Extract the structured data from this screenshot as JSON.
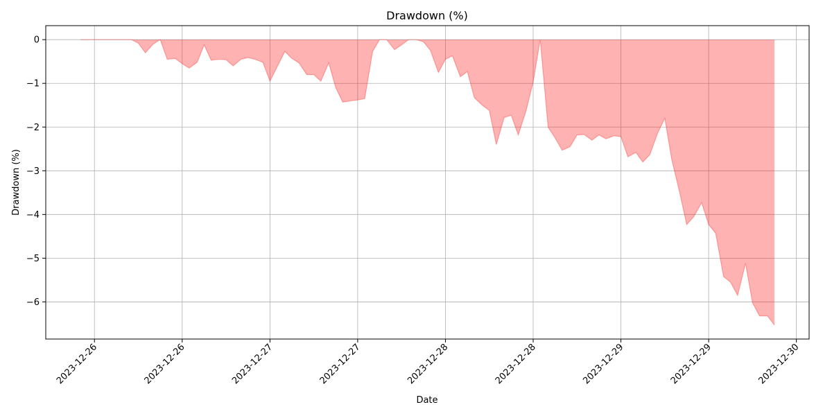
{
  "chart_data": {
    "type": "area",
    "title": "Drawdown (%)",
    "xlabel": "Date",
    "ylabel": "Drawdown (%)",
    "ylim": [
      -6.85,
      0.32
    ],
    "xlim": [
      -0.555,
      8.145
    ],
    "grid": true,
    "fill_color": "#ff0000",
    "fill_opacity": 0.3,
    "x_ticks": [
      {
        "pos": 0,
        "label": "2023-12-26"
      },
      {
        "pos": 1,
        "label": "2023-12-26"
      },
      {
        "pos": 2,
        "label": "2023-12-27"
      },
      {
        "pos": 3,
        "label": "2023-12-27"
      },
      {
        "pos": 4,
        "label": "2023-12-28"
      },
      {
        "pos": 5,
        "label": "2023-12-28"
      },
      {
        "pos": 6,
        "label": "2023-12-29"
      },
      {
        "pos": 7,
        "label": "2023-12-29"
      },
      {
        "pos": 8,
        "label": "2023-12-30"
      }
    ],
    "y_ticks": [
      {
        "value": 0,
        "label": "0"
      },
      {
        "value": -1,
        "label": "−1"
      },
      {
        "value": -2,
        "label": "−2"
      },
      {
        "value": -3,
        "label": "−3"
      },
      {
        "value": -4,
        "label": "−4"
      },
      {
        "value": -5,
        "label": "−5"
      },
      {
        "value": -6,
        "label": "−6"
      }
    ],
    "series": [
      {
        "x": [
          -0.16,
          0.42,
          0.5,
          0.58,
          0.67,
          0.75,
          0.83,
          0.92,
          1.0,
          1.08,
          1.17,
          1.25,
          1.33,
          1.42,
          1.5,
          1.58,
          1.67,
          1.75,
          1.83,
          1.92,
          2.0,
          2.17,
          2.25,
          2.33,
          2.42,
          2.5,
          2.58,
          2.67,
          2.75,
          2.83,
          2.92,
          3.0,
          3.08,
          3.17,
          3.25,
          3.33,
          3.42,
          3.5,
          3.58,
          3.67,
          3.75,
          3.83,
          3.92,
          4.0,
          4.08,
          4.17,
          4.25,
          4.33,
          4.42,
          4.5,
          4.58,
          4.67,
          4.75,
          4.83,
          4.92,
          5.0,
          5.08,
          5.17,
          5.25,
          5.33,
          5.42,
          5.5,
          5.58,
          5.67,
          5.75,
          5.83,
          5.92,
          6.0,
          6.08,
          6.17,
          6.25,
          6.33,
          6.42,
          6.5,
          6.58,
          6.67,
          6.75,
          6.83,
          6.92,
          7.0,
          7.08,
          7.17,
          7.25,
          7.33,
          7.42,
          7.5,
          7.58,
          7.67,
          7.75
        ],
        "y": [
          0,
          0,
          -0.08,
          -0.3,
          -0.1,
          0,
          -0.45,
          -0.43,
          -0.55,
          -0.65,
          -0.52,
          -0.12,
          -0.47,
          -0.45,
          -0.46,
          -0.6,
          -0.45,
          -0.41,
          -0.45,
          -0.52,
          -0.95,
          -0.27,
          -0.43,
          -0.53,
          -0.8,
          -0.8,
          -0.95,
          -0.53,
          -1.1,
          -1.43,
          -1.4,
          -1.38,
          -1.35,
          -0.27,
          0,
          0,
          -0.23,
          -0.12,
          0,
          0,
          -0.05,
          -0.25,
          -0.75,
          -0.45,
          -0.37,
          -0.85,
          -0.73,
          -1.33,
          -1.5,
          -1.62,
          -2.4,
          -1.78,
          -1.73,
          -2.18,
          -1.62,
          -0.97,
          0,
          -2.0,
          -2.25,
          -2.53,
          -2.45,
          -2.18,
          -2.17,
          -2.3,
          -2.18,
          -2.27,
          -2.2,
          -2.22,
          -2.68,
          -2.58,
          -2.8,
          -2.63,
          -2.13,
          -1.8,
          -2.75,
          -3.5,
          -4.23,
          -4.05,
          -3.73,
          -4.23,
          -4.43,
          -5.42,
          -5.55,
          -5.85,
          -5.12,
          -6.02,
          -6.32,
          -6.32,
          -6.53
        ]
      }
    ]
  }
}
